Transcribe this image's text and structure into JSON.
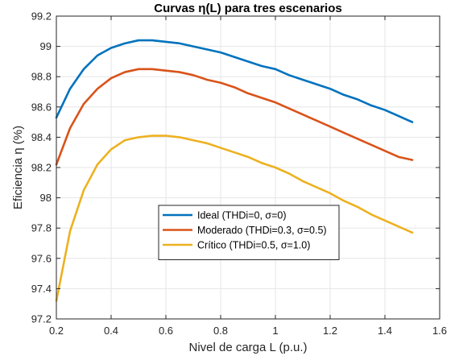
{
  "chart_data": {
    "type": "line",
    "title": "Curvas η(L) para tres escenarios",
    "xlabel": "Nivel de carga L (p.u.)",
    "ylabel": "Eficiencia η (%)",
    "xlim": [
      0.2,
      1.6
    ],
    "ylim": [
      97.2,
      99.2
    ],
    "xticks": [
      "0.2",
      "0.4",
      "0.6",
      "0.8",
      "1",
      "1.2",
      "1.4",
      "1.6"
    ],
    "yticks": [
      "97.2",
      "97.4",
      "97.6",
      "97.8",
      "98",
      "98.2",
      "98.4",
      "98.6",
      "98.8",
      "99",
      "99.2"
    ],
    "grid": true,
    "legend_position": "center",
    "x": [
      0.2,
      0.25,
      0.3,
      0.35,
      0.4,
      0.45,
      0.5,
      0.55,
      0.6,
      0.65,
      0.7,
      0.75,
      0.8,
      0.85,
      0.9,
      0.95,
      1.0,
      1.05,
      1.1,
      1.15,
      1.2,
      1.25,
      1.3,
      1.35,
      1.4,
      1.45,
      1.5
    ],
    "series": [
      {
        "name": "Ideal (THDi=0, σ=0)",
        "color": "#0072BD",
        "values": [
          98.53,
          98.72,
          98.85,
          98.94,
          98.99,
          99.02,
          99.04,
          99.04,
          99.03,
          99.02,
          99.0,
          98.98,
          98.96,
          98.93,
          98.9,
          98.87,
          98.85,
          98.81,
          98.78,
          98.75,
          98.72,
          98.68,
          98.65,
          98.61,
          98.58,
          98.54,
          98.5
        ]
      },
      {
        "name": "Moderado (THDi=0.3, σ=0.5)",
        "color": "#D95319",
        "values": [
          98.22,
          98.46,
          98.62,
          98.72,
          98.79,
          98.83,
          98.85,
          98.85,
          98.84,
          98.83,
          98.81,
          98.78,
          98.76,
          98.73,
          98.69,
          98.66,
          98.63,
          98.59,
          98.55,
          98.51,
          98.47,
          98.43,
          98.39,
          98.35,
          98.31,
          98.27,
          98.25
        ]
      },
      {
        "name": "Crítico (THDi=0.5, σ=1.0)",
        "color": "#EDB120",
        "values": [
          97.32,
          97.78,
          98.05,
          98.22,
          98.32,
          98.38,
          98.4,
          98.41,
          98.41,
          98.4,
          98.38,
          98.36,
          98.33,
          98.3,
          98.27,
          98.23,
          98.2,
          98.16,
          98.11,
          98.07,
          98.03,
          97.98,
          97.94,
          97.89,
          97.85,
          97.81,
          97.77
        ]
      }
    ]
  }
}
